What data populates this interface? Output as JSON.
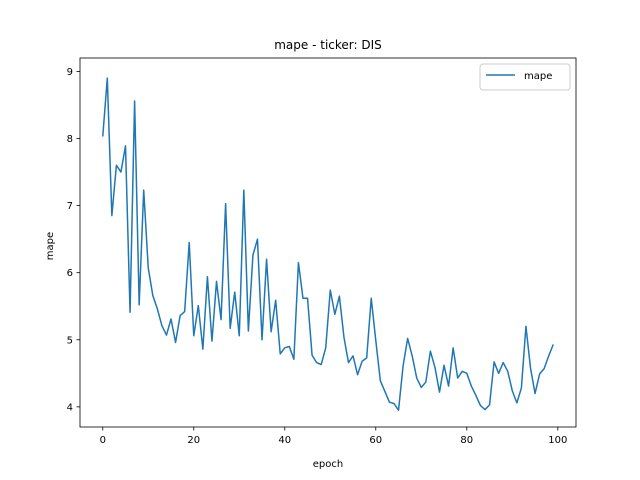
{
  "chart_data": {
    "type": "line",
    "title": "mape - ticker: DIS",
    "xlabel": "epoch",
    "ylabel": "mape",
    "xlim": [
      -5,
      104
    ],
    "ylim": [
      3.7,
      9.2
    ],
    "xticks": [
      0,
      20,
      40,
      60,
      80,
      100
    ],
    "yticks": [
      4,
      5,
      6,
      7,
      8,
      9
    ],
    "grid": false,
    "legend_position": "top-right",
    "series": [
      {
        "name": "mape",
        "color": "#1f77b4",
        "x": [
          0,
          1,
          2,
          3,
          4,
          5,
          6,
          7,
          8,
          9,
          10,
          11,
          12,
          13,
          14,
          15,
          16,
          17,
          18,
          19,
          20,
          21,
          22,
          23,
          24,
          25,
          26,
          27,
          28,
          29,
          30,
          31,
          32,
          33,
          34,
          35,
          36,
          37,
          38,
          39,
          40,
          41,
          42,
          43,
          44,
          45,
          46,
          47,
          48,
          49,
          50,
          51,
          52,
          53,
          54,
          55,
          56,
          57,
          58,
          59,
          60,
          61,
          62,
          63,
          64,
          65,
          66,
          67,
          68,
          69,
          70,
          71,
          72,
          73,
          74,
          75,
          76,
          77,
          78,
          79,
          80,
          81,
          82,
          83,
          84,
          85,
          86,
          87,
          88,
          89,
          90,
          91,
          92,
          93,
          94,
          95,
          96,
          97,
          98,
          99
        ],
        "values": [
          8.03,
          8.9,
          6.85,
          7.6,
          7.5,
          7.89,
          5.41,
          8.56,
          5.52,
          7.23,
          6.07,
          5.66,
          5.46,
          5.21,
          5.07,
          5.31,
          4.96,
          5.36,
          5.42,
          6.45,
          5.06,
          5.51,
          4.86,
          5.94,
          4.98,
          5.87,
          5.3,
          7.03,
          5.17,
          5.71,
          5.06,
          7.23,
          5.13,
          6.26,
          6.5,
          5.0,
          6.2,
          5.12,
          5.59,
          4.79,
          4.88,
          4.9,
          4.71,
          6.15,
          5.62,
          5.62,
          4.77,
          4.66,
          4.63,
          4.88,
          5.74,
          5.38,
          5.65,
          5.04,
          4.66,
          4.76,
          4.48,
          4.68,
          4.73,
          5.62,
          4.99,
          4.39,
          4.23,
          4.07,
          4.05,
          3.95,
          4.61,
          5.02,
          4.76,
          4.43,
          4.29,
          4.37,
          4.83,
          4.59,
          4.22,
          4.62,
          4.31,
          4.88,
          4.43,
          4.53,
          4.5,
          4.31,
          4.17,
          4.02,
          3.96,
          4.03,
          4.67,
          4.5,
          4.66,
          4.53,
          4.24,
          4.06,
          4.28,
          5.2,
          4.58,
          4.2,
          4.49,
          4.57,
          4.76,
          4.93
        ]
      }
    ]
  }
}
